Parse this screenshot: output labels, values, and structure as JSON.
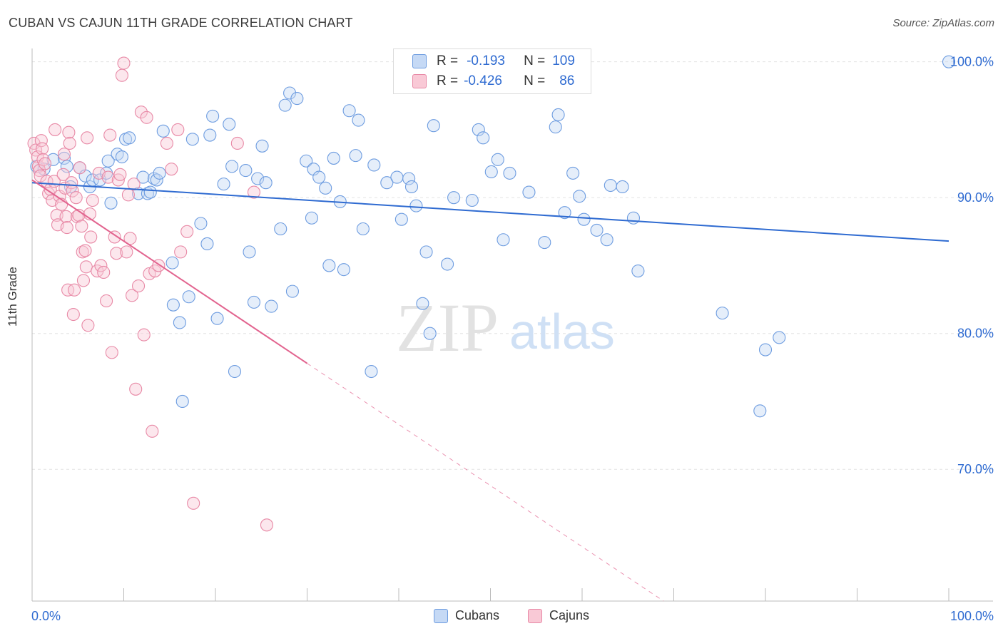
{
  "title": "CUBAN VS CAJUN 11TH GRADE CORRELATION CHART",
  "source": "Source: ZipAtlas.com",
  "colors": {
    "blue": "#6d9ce0",
    "blue_fill": "#c5d9f5",
    "blue_line": "#2f6bd1",
    "pink": "#e889a6",
    "pink_fill": "#f9c9d6",
    "pink_line": "#e2648f",
    "axis_text": "#2f6bd1"
  },
  "legend": {
    "rows": [
      {
        "r_label": "R =",
        "r_value": "-0.193",
        "n_label": "N =",
        "n_value": "109"
      },
      {
        "r_label": "R =",
        "r_value": "-0.426",
        "n_label": "N =",
        "n_value": "86"
      }
    ]
  },
  "bottom_legend": {
    "cubans": "Cubans",
    "cajuns": "Cajuns"
  },
  "watermark": {
    "zip": "ZIP",
    "atlas": "atlas"
  },
  "chart_data": {
    "type": "scatter",
    "title": "CUBAN VS CAJUN 11TH GRADE CORRELATION CHART",
    "xlabel": "",
    "ylabel": "11th Grade",
    "x_tick_labels": [
      "0.0%",
      "100.0%"
    ],
    "y_tick_labels": [
      "100.0%",
      "90.0%",
      "80.0%",
      "70.0%"
    ],
    "y_ticks": [
      100,
      90,
      80,
      70
    ],
    "xlim": [
      0,
      100
    ],
    "ylim": [
      60.3,
      101.4
    ],
    "grid": true,
    "legend_position": "top-center",
    "series": [
      {
        "name": "Cubans",
        "color": "#6d9ce0",
        "trend": {
          "x": [
            0,
            100
          ],
          "y": [
            91.1,
            86.8
          ],
          "solid_to": 100
        },
        "points": [
          [
            0.5,
            92.3
          ],
          [
            1.3,
            92.1
          ],
          [
            2.3,
            92.8
          ],
          [
            3.5,
            92.9
          ],
          [
            3.8,
            92.3
          ],
          [
            4.2,
            90.8
          ],
          [
            5.2,
            92.2
          ],
          [
            6.3,
            90.8
          ],
          [
            5.8,
            91.6
          ],
          [
            6.6,
            91.3
          ],
          [
            7.4,
            91.3
          ],
          [
            8.3,
            92.7
          ],
          [
            8.1,
            91.8
          ],
          [
            8.6,
            89.6
          ],
          [
            9.3,
            93.2
          ],
          [
            9.8,
            93.0
          ],
          [
            10.2,
            94.3
          ],
          [
            10.6,
            94.4
          ],
          [
            11.6,
            90.3
          ],
          [
            12.1,
            91.5
          ],
          [
            12.6,
            90.3
          ],
          [
            12.9,
            90.4
          ],
          [
            13.3,
            91.4
          ],
          [
            13.6,
            91.3
          ],
          [
            13.9,
            91.8
          ],
          [
            14.3,
            94.9
          ],
          [
            15.3,
            85.2
          ],
          [
            15.4,
            82.1
          ],
          [
            16.1,
            80.8
          ],
          [
            16.4,
            75.0
          ],
          [
            17.1,
            82.7
          ],
          [
            17.5,
            94.3
          ],
          [
            18.4,
            88.1
          ],
          [
            19.1,
            86.6
          ],
          [
            19.4,
            94.6
          ],
          [
            19.7,
            96.0
          ],
          [
            20.2,
            81.1
          ],
          [
            20.9,
            91.0
          ],
          [
            21.5,
            95.4
          ],
          [
            21.8,
            92.3
          ],
          [
            22.1,
            77.2
          ],
          [
            23.3,
            92.0
          ],
          [
            23.7,
            86.0
          ],
          [
            24.2,
            82.3
          ],
          [
            24.6,
            91.4
          ],
          [
            25.1,
            93.8
          ],
          [
            25.5,
            91.1
          ],
          [
            26.1,
            82.0
          ],
          [
            27.1,
            87.7
          ],
          [
            27.6,
            96.8
          ],
          [
            28.1,
            97.7
          ],
          [
            28.4,
            83.1
          ],
          [
            28.9,
            97.3
          ],
          [
            29.9,
            92.7
          ],
          [
            30.5,
            88.5
          ],
          [
            30.7,
            92.1
          ],
          [
            31.3,
            91.5
          ],
          [
            32.0,
            90.7
          ],
          [
            32.4,
            85.0
          ],
          [
            32.9,
            92.9
          ],
          [
            33.6,
            89.7
          ],
          [
            34.0,
            84.7
          ],
          [
            34.6,
            96.4
          ],
          [
            35.3,
            93.1
          ],
          [
            35.6,
            95.7
          ],
          [
            36.1,
            87.7
          ],
          [
            37.0,
            77.2
          ],
          [
            37.3,
            92.4
          ],
          [
            38.7,
            91.1
          ],
          [
            39.8,
            91.5
          ],
          [
            40.3,
            88.4
          ],
          [
            41.1,
            91.4
          ],
          [
            41.4,
            90.8
          ],
          [
            41.9,
            89.4
          ],
          [
            42.6,
            82.2
          ],
          [
            43.0,
            86.0
          ],
          [
            43.4,
            80.0
          ],
          [
            43.8,
            95.3
          ],
          [
            45.3,
            85.1
          ],
          [
            46.0,
            90.0
          ],
          [
            48.0,
            89.8
          ],
          [
            48.7,
            95.0
          ],
          [
            49.2,
            94.4
          ],
          [
            50.1,
            91.9
          ],
          [
            50.8,
            92.8
          ],
          [
            51.4,
            86.9
          ],
          [
            52.1,
            91.8
          ],
          [
            54.2,
            90.4
          ],
          [
            55.9,
            86.7
          ],
          [
            57.1,
            95.2
          ],
          [
            57.4,
            96.1
          ],
          [
            58.1,
            88.9
          ],
          [
            59.0,
            91.8
          ],
          [
            59.7,
            90.1
          ],
          [
            60.2,
            88.4
          ],
          [
            61.6,
            87.6
          ],
          [
            62.7,
            86.9
          ],
          [
            63.1,
            90.9
          ],
          [
            64.4,
            90.8
          ],
          [
            65.6,
            88.5
          ],
          [
            66.1,
            84.6
          ],
          [
            75.3,
            81.5
          ],
          [
            79.4,
            74.3
          ],
          [
            80.0,
            78.8
          ],
          [
            81.5,
            79.7
          ],
          [
            100.0,
            100.0
          ]
        ]
      },
      {
        "name": "Cajuns",
        "color": "#e889a6",
        "trend": {
          "x": [
            0,
            100
          ],
          "y": [
            91.3,
            46.3
          ],
          "solid_to": 30
        },
        "points": [
          [
            0.2,
            94.0
          ],
          [
            0.4,
            93.5
          ],
          [
            0.6,
            93.0
          ],
          [
            0.7,
            92.3
          ],
          [
            0.8,
            92.0
          ],
          [
            0.9,
            91.6
          ],
          [
            1.0,
            94.2
          ],
          [
            1.1,
            93.6
          ],
          [
            1.2,
            92.8
          ],
          [
            1.4,
            92.5
          ],
          [
            1.6,
            91.2
          ],
          [
            1.8,
            90.3
          ],
          [
            2.0,
            90.6
          ],
          [
            2.2,
            89.8
          ],
          [
            2.4,
            91.2
          ],
          [
            2.5,
            95.0
          ],
          [
            2.7,
            88.7
          ],
          [
            2.8,
            88.0
          ],
          [
            3.0,
            90.1
          ],
          [
            3.2,
            89.5
          ],
          [
            3.4,
            91.7
          ],
          [
            3.5,
            93.2
          ],
          [
            3.6,
            90.7
          ],
          [
            3.7,
            88.6
          ],
          [
            3.8,
            87.8
          ],
          [
            3.9,
            83.2
          ],
          [
            4.0,
            94.8
          ],
          [
            4.1,
            94.0
          ],
          [
            4.3,
            91.1
          ],
          [
            4.4,
            90.5
          ],
          [
            4.5,
            81.4
          ],
          [
            4.6,
            83.2
          ],
          [
            4.8,
            90.0
          ],
          [
            4.9,
            88.6
          ],
          [
            5.1,
            88.7
          ],
          [
            5.2,
            92.2
          ],
          [
            5.4,
            87.9
          ],
          [
            5.5,
            86.0
          ],
          [
            5.6,
            83.9
          ],
          [
            5.8,
            86.1
          ],
          [
            5.9,
            84.9
          ],
          [
            6.0,
            94.4
          ],
          [
            6.1,
            80.6
          ],
          [
            6.3,
            88.8
          ],
          [
            6.4,
            87.1
          ],
          [
            6.6,
            89.8
          ],
          [
            7.1,
            84.6
          ],
          [
            7.3,
            91.8
          ],
          [
            7.5,
            85.0
          ],
          [
            7.8,
            84.5
          ],
          [
            8.1,
            82.4
          ],
          [
            8.3,
            91.5
          ],
          [
            8.5,
            94.6
          ],
          [
            8.7,
            78.6
          ],
          [
            9.0,
            87.1
          ],
          [
            9.2,
            85.9
          ],
          [
            9.4,
            91.3
          ],
          [
            9.6,
            91.7
          ],
          [
            9.8,
            99.0
          ],
          [
            10.0,
            99.9
          ],
          [
            10.3,
            86.0
          ],
          [
            10.5,
            90.2
          ],
          [
            10.7,
            87.0
          ],
          [
            10.9,
            82.8
          ],
          [
            11.1,
            91.0
          ],
          [
            11.3,
            75.9
          ],
          [
            11.6,
            83.5
          ],
          [
            11.9,
            96.3
          ],
          [
            12.2,
            79.9
          ],
          [
            12.5,
            95.9
          ],
          [
            12.8,
            84.4
          ],
          [
            13.1,
            72.8
          ],
          [
            13.4,
            84.6
          ],
          [
            13.8,
            85.0
          ],
          [
            14.7,
            94.0
          ],
          [
            15.2,
            92.1
          ],
          [
            15.9,
            95.0
          ],
          [
            16.2,
            86.0
          ],
          [
            16.9,
            87.5
          ],
          [
            17.6,
            67.5
          ],
          [
            22.4,
            94.0
          ],
          [
            24.2,
            90.4
          ],
          [
            25.6,
            65.9
          ]
        ]
      }
    ]
  }
}
